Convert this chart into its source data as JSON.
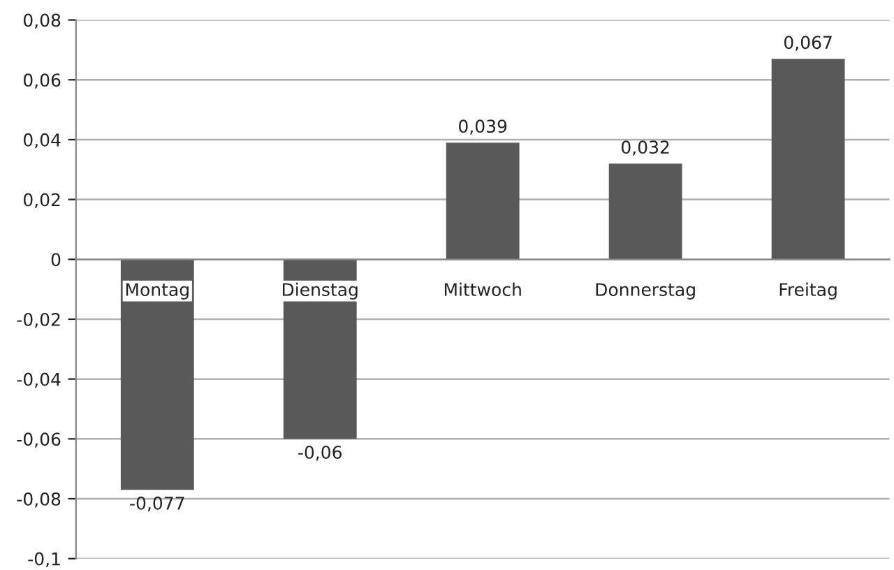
{
  "chart_data": {
    "type": "bar",
    "categories": [
      "Montag",
      "Dienstag",
      "Mittwoch",
      "Donnerstag",
      "Freitag"
    ],
    "values": [
      -0.077,
      -0.06,
      0.039,
      0.032,
      0.067
    ],
    "value_labels": [
      "-0,077",
      "-0,06",
      "0,039",
      "0,032",
      "0,067"
    ],
    "color": "#595959",
    "ylim": [
      -0.1,
      0.08
    ],
    "yticks": [
      {
        "value": -0.1,
        "label": "-0,1"
      },
      {
        "value": -0.08,
        "label": "-0,08"
      },
      {
        "value": -0.06,
        "label": "-0,06"
      },
      {
        "value": -0.04,
        "label": "-0,04"
      },
      {
        "value": -0.02,
        "label": "-0,02"
      },
      0,
      {
        "value": 0.02,
        "label": "0,02"
      },
      {
        "value": 0.04,
        "label": "0,04"
      },
      {
        "value": 0.06,
        "label": "0,06"
      },
      {
        "value": 0.08,
        "label": "0,08"
      }
    ],
    "grid": "y",
    "legend": false
  }
}
